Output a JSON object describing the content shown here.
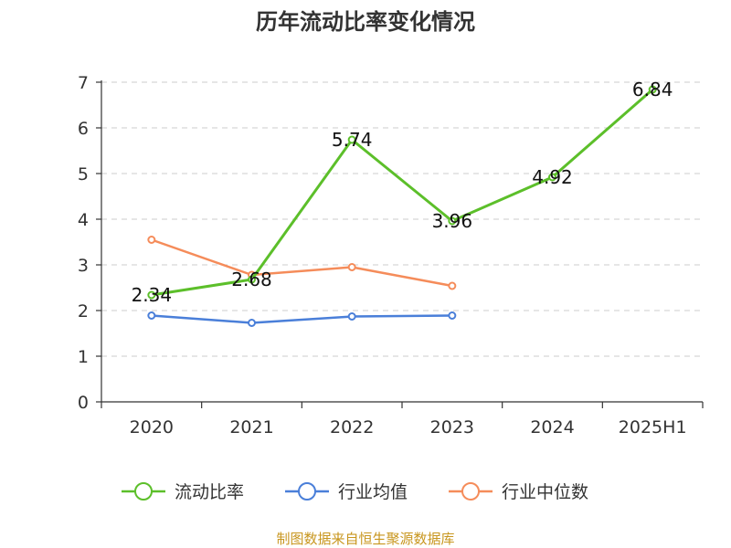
{
  "chart_data": {
    "type": "line",
    "title": "历年流动比率变化情况",
    "categories": [
      "2020",
      "2021",
      "2022",
      "2023",
      "2024",
      "2025H1"
    ],
    "ylim": [
      0,
      7
    ],
    "yticks": [
      "0",
      "1",
      "2",
      "3",
      "4",
      "5",
      "6",
      "7"
    ],
    "grid": true,
    "legend_position": "bottom",
    "series": [
      {
        "name": "流动比率",
        "color": "#5cbf2a",
        "values": [
          2.34,
          2.68,
          5.74,
          3.96,
          4.92,
          6.84
        ],
        "labels": [
          "2.34",
          "2.68",
          "5.74",
          "3.96",
          "4.92",
          "6.84"
        ]
      },
      {
        "name": "行业均值",
        "color": "#4a7fd9",
        "values": [
          1.89,
          1.73,
          1.87,
          1.89,
          null,
          null
        ]
      },
      {
        "name": "行业中位数",
        "color": "#f58c5a",
        "values": [
          3.55,
          2.78,
          2.95,
          2.54,
          null,
          null
        ]
      }
    ]
  },
  "source": {
    "text": "制图数据来自恒生聚源数据库",
    "color": "#c8961e"
  }
}
